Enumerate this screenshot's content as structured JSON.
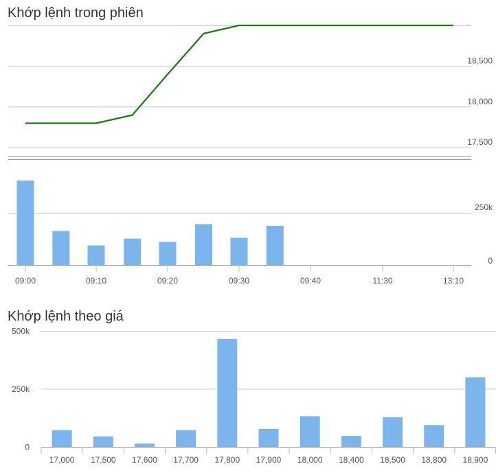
{
  "intraday": {
    "title": "Khớp lệnh trong phiên",
    "price_ticks": [
      "18,500",
      "18,000",
      "17,500"
    ],
    "volume_ticks": [
      "250k",
      "0"
    ],
    "time_ticks": [
      "09:00",
      "09:10",
      "09:20",
      "09:30",
      "09:40",
      "11:30",
      "13:10"
    ]
  },
  "by_price": {
    "title": "Khớp lệnh theo giá",
    "volume_ticks": [
      "500k",
      "250k",
      "0"
    ],
    "price_labels": [
      "17,000",
      "17,500",
      "17,600",
      "17,700",
      "17,800",
      "17,900",
      "18,000",
      "18,400",
      "18,500",
      "18,800",
      "18,900"
    ]
  },
  "colors": {
    "price_line": "#1a7a12",
    "bar": "#7cb5ec",
    "grid": "#c8c8c8"
  },
  "chart_data": [
    {
      "type": "line",
      "title": "Khớp lệnh trong phiên",
      "x": [
        "09:00",
        "09:10",
        "09:15",
        "09:20",
        "09:25",
        "09:30",
        "13:10"
      ],
      "values": [
        17800,
        17800,
        17900,
        18400,
        18900,
        19000,
        19000
      ],
      "ylim": [
        17400,
        19000
      ],
      "yticks": [
        17500,
        18000,
        18500
      ],
      "xticks": [
        "09:00",
        "09:10",
        "09:20",
        "09:30",
        "09:40",
        "11:30",
        "13:10"
      ],
      "grid": true
    },
    {
      "type": "bar",
      "title": "",
      "categories": [
        "09:00",
        "09:05",
        "09:10",
        "09:15",
        "09:20",
        "09:25",
        "09:30",
        "09:35"
      ],
      "values": [
        410000,
        165000,
        95000,
        128000,
        112000,
        198000,
        132000,
        190000
      ],
      "ylim": [
        0,
        500000
      ],
      "yticks": [
        0,
        250000
      ],
      "grid": true
    },
    {
      "type": "bar",
      "title": "Khớp lệnh theo giá",
      "categories": [
        "17,000",
        "17,500",
        "17,600",
        "17,700",
        "17,800",
        "17,900",
        "18,000",
        "18,400",
        "18,500",
        "18,800",
        "18,900"
      ],
      "values": [
        72000,
        45000,
        14000,
        72000,
        465000,
        77000,
        132000,
        47000,
        128000,
        94000,
        300000
      ],
      "ylim": [
        0,
        500000
      ],
      "yticks": [
        0,
        250000,
        500000
      ],
      "grid": true
    }
  ]
}
